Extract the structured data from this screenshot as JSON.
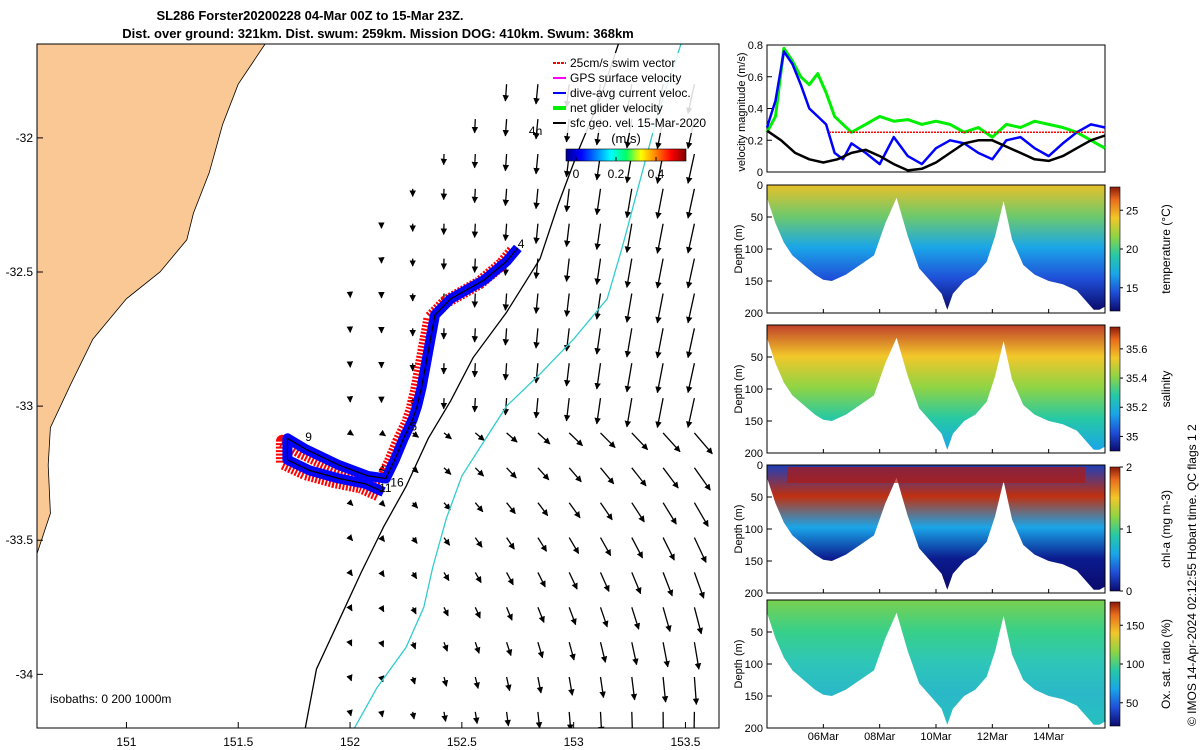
{
  "title": {
    "line1": "SL286 Forster20200228 04-Mar 00Z to 15-Mar 23Z.",
    "line2": "Dist. over ground: 321km. Dist. swum: 259km. Mission DOG: 410km. Swum: 368km"
  },
  "credit": "© IMOS 14-Apr-2024 02:12:55 Hobart time. QC flags 1  2",
  "colors": {
    "land": "#f9c894",
    "swim_vector": "#ff0000",
    "gps_velocity": "#ff00ff",
    "dive_avg": "#0000ff",
    "net_glider": "#00ee00",
    "sfc_geo": "#000000",
    "isobath_200": "#000000",
    "isobath_1000": "#33cccc"
  },
  "chart_data": [
    {
      "type": "map",
      "name": "glider-track-map",
      "xticks": [
        "151",
        "151.5",
        "152",
        "152.5",
        "153",
        "153.5"
      ],
      "xtick_values": [
        151,
        151.5,
        152,
        152.5,
        153,
        153.5
      ],
      "yticks": [
        "-32",
        "-32.5",
        "-33",
        "-33.5",
        "-34"
      ],
      "ytick_values": [
        -32,
        -32.5,
        -33,
        -33.5,
        -34
      ],
      "xlim": [
        150.6,
        153.65
      ],
      "ylim": [
        -34.2,
        -31.65
      ],
      "legend": {
        "placement": "top-right",
        "entries": [
          {
            "label": "25cm/s swim vector",
            "color": "#ff0000"
          },
          {
            "label": "GPS surface velocity",
            "color": "#ff00ff"
          },
          {
            "label": "dive-avg current veloc.",
            "color": "#0000ff"
          },
          {
            "label": "net glider velocity",
            "color": "#00ee00"
          },
          {
            "label": "sfc geo. vel. 15-Mar-2020",
            "color": "#000000"
          }
        ]
      },
      "colorbar": {
        "title": "(m/s)",
        "ticks": [
          "0",
          "0.2",
          "0.4"
        ],
        "range": [
          -0.05,
          0.55
        ]
      },
      "isobaths_label": "isobaths: 0   200  1000m",
      "track_labels": [
        {
          "text": "4h",
          "lon": 152.8,
          "lat": -31.99
        },
        {
          "text": "4",
          "lon": 152.75,
          "lat": -32.41
        },
        {
          "text": "6",
          "lon": 152.27,
          "lat": -33.09
        },
        {
          "text": "9",
          "lon": 151.8,
          "lat": -33.13
        },
        {
          "text": "16",
          "lon": 152.18,
          "lat": -33.3
        },
        {
          "text": "11",
          "lon": 152.13,
          "lat": -33.32
        }
      ],
      "track": [
        [
          152.75,
          -32.41
        ],
        [
          152.7,
          -32.46
        ],
        [
          152.6,
          -32.53
        ],
        [
          152.45,
          -32.6
        ],
        [
          152.38,
          -32.66
        ],
        [
          152.36,
          -32.75
        ],
        [
          152.34,
          -32.84
        ],
        [
          152.32,
          -32.93
        ],
        [
          152.3,
          -33.0
        ],
        [
          152.28,
          -33.05
        ],
        [
          152.24,
          -33.12
        ],
        [
          152.2,
          -33.2
        ],
        [
          152.16,
          -33.27
        ],
        [
          152.08,
          -33.26
        ],
        [
          151.95,
          -33.22
        ],
        [
          151.8,
          -33.16
        ],
        [
          151.72,
          -33.12
        ],
        [
          151.72,
          -33.2
        ],
        [
          151.82,
          -33.24
        ],
        [
          151.95,
          -33.27
        ],
        [
          152.07,
          -33.29
        ],
        [
          152.15,
          -33.32
        ]
      ],
      "coast": [
        [
          151.62,
          -31.65
        ],
        [
          151.5,
          -31.8
        ],
        [
          151.43,
          -31.95
        ],
        [
          151.37,
          -32.13
        ],
        [
          151.3,
          -32.28
        ],
        [
          151.27,
          -32.38
        ],
        [
          151.15,
          -32.5
        ],
        [
          151.0,
          -32.6
        ],
        [
          150.85,
          -32.75
        ],
        [
          150.75,
          -32.92
        ],
        [
          150.66,
          -33.08
        ],
        [
          150.65,
          -33.22
        ],
        [
          150.66,
          -33.4
        ],
        [
          150.6,
          -33.55
        ],
        [
          150.55,
          -33.7
        ],
        [
          150.5,
          -33.85
        ],
        [
          150.45,
          -34.0
        ],
        [
          150.4,
          -34.2
        ]
      ],
      "isobath_200": [
        [
          153.2,
          -31.65
        ],
        [
          153.12,
          -31.85
        ],
        [
          153.02,
          -32.05
        ],
        [
          152.93,
          -32.25
        ],
        [
          152.85,
          -32.45
        ],
        [
          152.7,
          -32.65
        ],
        [
          152.55,
          -32.82
        ],
        [
          152.45,
          -32.98
        ],
        [
          152.35,
          -33.12
        ],
        [
          152.25,
          -33.3
        ],
        [
          152.15,
          -33.45
        ],
        [
          152.05,
          -33.62
        ],
        [
          151.95,
          -33.8
        ],
        [
          151.85,
          -33.98
        ],
        [
          151.8,
          -34.2
        ]
      ],
      "isobath_1000": [
        [
          153.48,
          -31.65
        ],
        [
          153.38,
          -31.9
        ],
        [
          153.3,
          -32.15
        ],
        [
          153.22,
          -32.4
        ],
        [
          153.15,
          -32.6
        ],
        [
          153.0,
          -32.75
        ],
        [
          152.85,
          -32.88
        ],
        [
          152.7,
          -33.0
        ],
        [
          152.6,
          -33.13
        ],
        [
          152.5,
          -33.26
        ],
        [
          152.43,
          -33.42
        ],
        [
          152.37,
          -33.6
        ],
        [
          152.33,
          -33.75
        ],
        [
          152.25,
          -33.9
        ],
        [
          152.12,
          -34.05
        ],
        [
          152.02,
          -34.2
        ]
      ],
      "vector_field": {
        "lon": [
          152.0,
          153.6
        ],
        "lat": [
          -34.15,
          -31.8
        ]
      }
    },
    {
      "type": "line",
      "name": "velocity-magnitude",
      "ylabel": "velocity magnitude (m/s)",
      "yticks": [
        "0",
        "0.2",
        "0.4",
        "0.6",
        "0.8"
      ],
      "ylim": [
        0,
        0.8
      ],
      "xlim": [
        4,
        16
      ],
      "series": [
        {
          "color": "#00ee00",
          "x": [
            4,
            4.3,
            4.6,
            4.9,
            5.2,
            5.5,
            5.8,
            6.1,
            6.4,
            6.7,
            7,
            7.5,
            8,
            8.5,
            9,
            9.5,
            10,
            10.5,
            11,
            11.5,
            12,
            12.5,
            13,
            13.5,
            14,
            14.5,
            15,
            15.5,
            16
          ],
          "y": [
            0.25,
            0.35,
            0.78,
            0.7,
            0.6,
            0.55,
            0.62,
            0.5,
            0.35,
            0.3,
            0.25,
            0.3,
            0.35,
            0.32,
            0.33,
            0.3,
            0.32,
            0.3,
            0.25,
            0.28,
            0.22,
            0.3,
            0.28,
            0.32,
            0.3,
            0.28,
            0.25,
            0.2,
            0.15
          ]
        },
        {
          "color": "#0000ff",
          "x": [
            4,
            4.3,
            4.6,
            4.9,
            5.2,
            5.5,
            5.8,
            6.1,
            6.4,
            6.7,
            7,
            7.5,
            8,
            8.5,
            9,
            9.5,
            10,
            10.5,
            11,
            11.5,
            12,
            12.5,
            13,
            13.5,
            14,
            14.5,
            15,
            15.5,
            16
          ],
          "y": [
            0.28,
            0.45,
            0.76,
            0.68,
            0.55,
            0.4,
            0.35,
            0.3,
            0.12,
            0.08,
            0.18,
            0.12,
            0.05,
            0.22,
            0.1,
            0.05,
            0.15,
            0.2,
            0.18,
            0.12,
            0.08,
            0.2,
            0.22,
            0.15,
            0.1,
            0.18,
            0.25,
            0.3,
            0.28
          ]
        },
        {
          "color": "#000000",
          "x": [
            4,
            4.5,
            5,
            5.5,
            6,
            6.5,
            7,
            7.5,
            8,
            8.5,
            9,
            9.5,
            10,
            10.5,
            11,
            11.5,
            12,
            12.5,
            13,
            13.5,
            14,
            14.5,
            15,
            15.5,
            16
          ],
          "y": [
            0.26,
            0.2,
            0.12,
            0.08,
            0.06,
            0.08,
            0.12,
            0.14,
            0.1,
            0.05,
            0.01,
            0.02,
            0.06,
            0.12,
            0.18,
            0.2,
            0.2,
            0.16,
            0.12,
            0.08,
            0.07,
            0.1,
            0.15,
            0.2,
            0.23
          ]
        },
        {
          "color": "#ff0000",
          "x": [
            6.2,
            16
          ],
          "y": [
            0.25,
            0.25
          ]
        }
      ]
    },
    {
      "type": "heatmap",
      "name": "temperature-section",
      "ylabel": "Depth (m)",
      "yticks": [
        "0",
        "50",
        "100",
        "150",
        "200"
      ],
      "ylim": [
        0,
        200
      ],
      "colorbar": {
        "label": "temperature (°C)",
        "ticks": [
          "15",
          "20",
          "25"
        ],
        "range": [
          12,
          28
        ]
      }
    },
    {
      "type": "heatmap",
      "name": "salinity-section",
      "ylabel": "Depth (m)",
      "yticks": [
        "50",
        "100",
        "150",
        "200"
      ],
      "ylim": [
        0,
        200
      ],
      "colorbar": {
        "label": "salinity",
        "ticks": [
          "35",
          "35.2",
          "35.4",
          "35.6"
        ],
        "range": [
          34.9,
          35.75
        ]
      }
    },
    {
      "type": "heatmap",
      "name": "chlorophyll-section",
      "ylabel": "Depth (m)",
      "yticks": [
        "0",
        "50",
        "100",
        "150",
        "200"
      ],
      "ylim": [
        0,
        200
      ],
      "colorbar": {
        "label": "chl-a (mg m-3)",
        "ticks": [
          "0",
          "1",
          "2"
        ],
        "range": [
          0,
          2
        ]
      }
    },
    {
      "type": "heatmap",
      "name": "oxygen-section",
      "ylabel": "Depth (m)",
      "yticks": [
        "50",
        "100",
        "150",
        "200"
      ],
      "ylim": [
        0,
        200
      ],
      "xticks": [
        "06Mar",
        "08Mar",
        "10Mar",
        "12Mar",
        "14Mar"
      ],
      "xtick_values": [
        6,
        8,
        10,
        12,
        14
      ],
      "colorbar": {
        "label": "Ox. sat. ratio (%)",
        "ticks": [
          "50",
          "100",
          "150"
        ],
        "range": [
          20,
          180
        ]
      }
    }
  ],
  "section_bottom": [
    [
      4,
      20
    ],
    [
      4.3,
      60
    ],
    [
      4.6,
      90
    ],
    [
      4.9,
      110
    ],
    [
      5.3,
      125
    ],
    [
      5.7,
      140
    ],
    [
      6.0,
      148
    ],
    [
      6.3,
      150
    ],
    [
      6.8,
      140
    ],
    [
      7.3,
      125
    ],
    [
      7.8,
      110
    ],
    [
      8.2,
      60
    ],
    [
      8.6,
      20
    ],
    [
      9.0,
      80
    ],
    [
      9.4,
      130
    ],
    [
      9.8,
      150
    ],
    [
      10.2,
      170
    ],
    [
      10.4,
      195
    ],
    [
      10.6,
      170
    ],
    [
      11.0,
      150
    ],
    [
      11.4,
      140
    ],
    [
      11.8,
      120
    ],
    [
      12.1,
      80
    ],
    [
      12.4,
      25
    ],
    [
      12.7,
      85
    ],
    [
      13.1,
      125
    ],
    [
      13.5,
      140
    ],
    [
      14.0,
      150
    ],
    [
      14.5,
      155
    ],
    [
      15.0,
      165
    ],
    [
      15.4,
      185
    ],
    [
      15.6,
      195
    ],
    [
      15.8,
      195
    ],
    [
      16,
      190
    ]
  ]
}
